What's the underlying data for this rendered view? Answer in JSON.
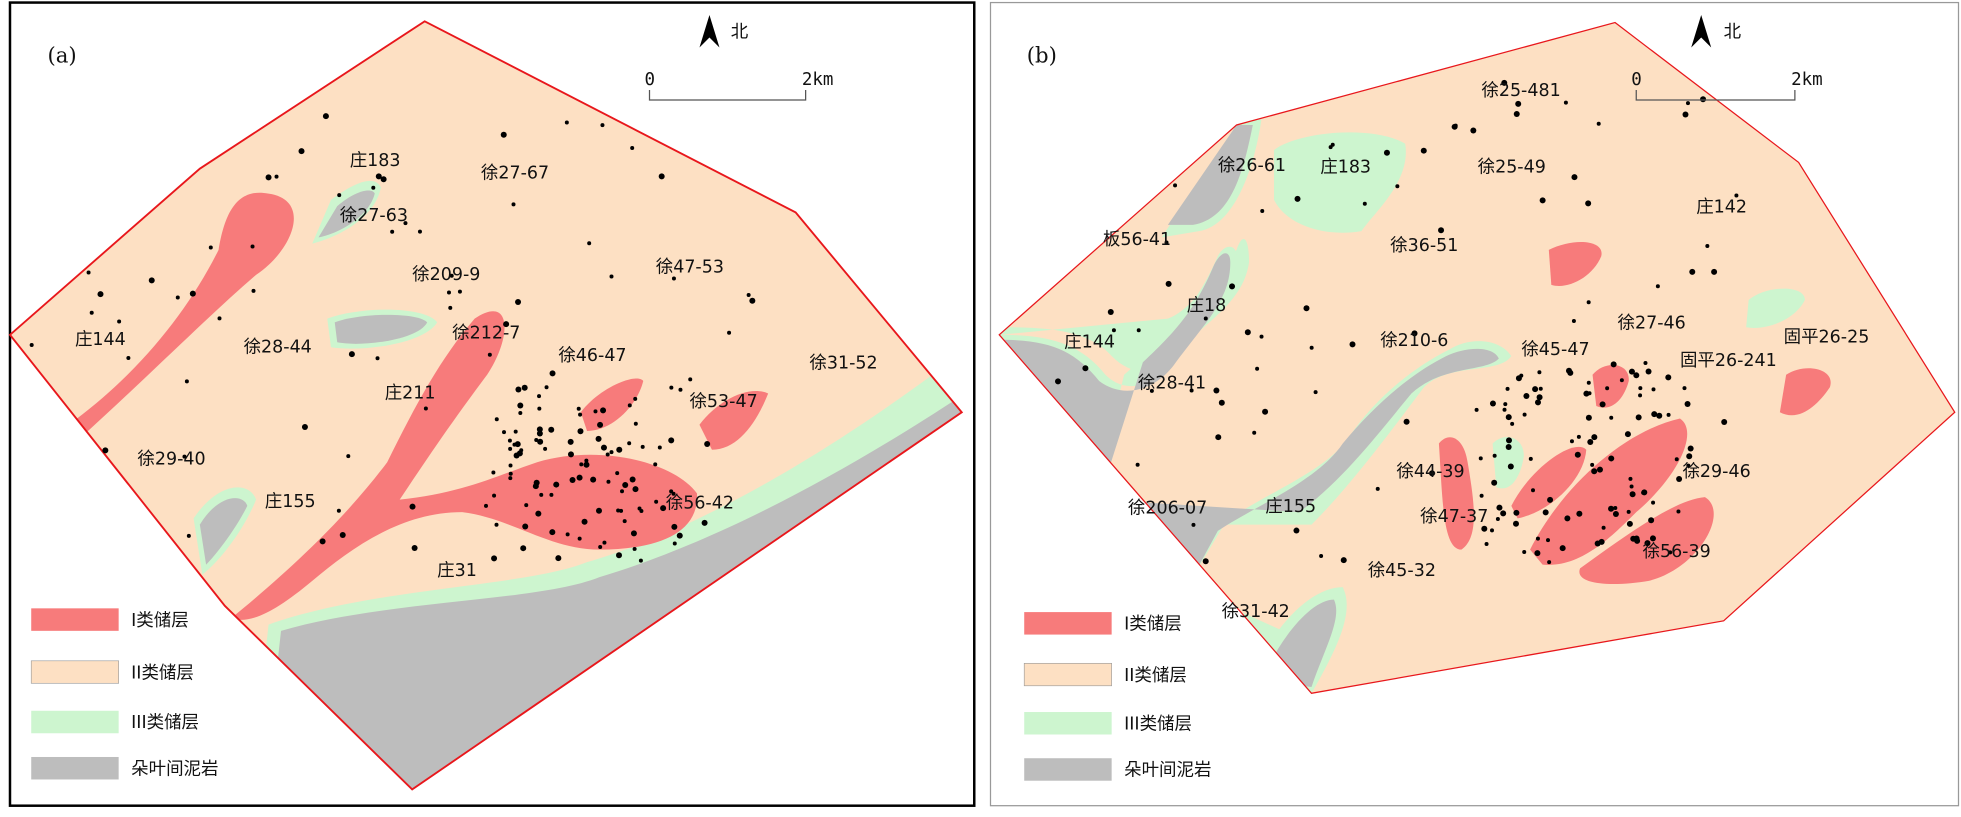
{
  "colors": {
    "class1": "#f77b7b",
    "class2": "#fde0c3",
    "class3": "#cdf5cf",
    "mudstone": "#bdbdbd",
    "boundary": "#e8171c"
  },
  "north_label": "北",
  "scale": {
    "zero": "0",
    "end": "2km"
  },
  "legend": [
    {
      "label": "I类储层",
      "color": "#f77b7b"
    },
    {
      "label": "II类储层",
      "color": "#fde0c3"
    },
    {
      "label": "III类储层",
      "color": "#cdf5cf"
    },
    {
      "label": "朵叶间泥岩",
      "color": "#bdbdbd"
    }
  ],
  "panel_a": {
    "tag": "(a)",
    "wells": [
      "庄183",
      "徐27-67",
      "徐27-63",
      "徐209-9",
      "徐47-53",
      "庄144",
      "徐28-44",
      "徐212-7",
      "徐46-47",
      "徐31-52",
      "庄211",
      "徐53-47",
      "徐29-40",
      "庄155",
      "徐56-42",
      "庄31"
    ]
  },
  "panel_b": {
    "tag": "(b)",
    "wells": [
      "徐25-481",
      "徐26-61",
      "庄183",
      "徐25-49",
      "庄142",
      "板56-41",
      "徐36-51",
      "庄18",
      "徐27-46",
      "庄144",
      "徐210-6",
      "徐45-47",
      "固平26-25",
      "固平26-241",
      "徐28-41",
      "徐29-46",
      "徐44-39",
      "徐206-07",
      "庄155",
      "徐47-37",
      "徐56-39",
      "徐45-32",
      "徐31-42"
    ]
  }
}
